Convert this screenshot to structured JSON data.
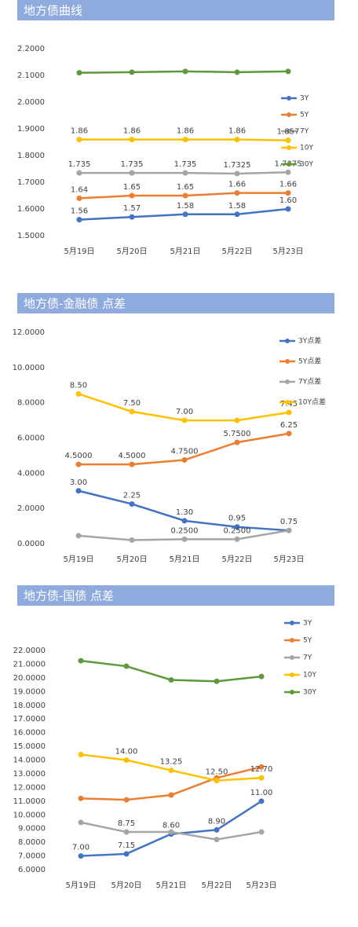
{
  "chart_data": [
    {
      "type": "line",
      "title": "地方债曲线",
      "categories": [
        "5月19日",
        "5月20日",
        "5月21日",
        "5月22日",
        "5月23日"
      ],
      "ylim": [
        1.5,
        2.2
      ],
      "yticks": [
        {
          "value": 1.5,
          "label": "1.5000"
        },
        {
          "value": 1.6,
          "label": "1.6000"
        },
        {
          "value": 1.7,
          "label": "1.7000"
        },
        {
          "value": 1.8,
          "label": "1.8000"
        },
        {
          "value": 1.9,
          "label": "1.9000"
        },
        {
          "value": 2.0,
          "label": "2.0000"
        },
        {
          "value": 2.1,
          "label": "2.1000"
        },
        {
          "value": 2.2,
          "label": "2.2000"
        }
      ],
      "grid": false,
      "legend": "right",
      "series": [
        {
          "name": "3Y",
          "color": "#4472c4",
          "values": [
            1.56,
            1.57,
            1.58,
            1.58,
            1.6
          ],
          "value_labels": [
            "1.56",
            "1.57",
            "1.58",
            "1.58",
            "1.60"
          ]
        },
        {
          "name": "5Y",
          "color": "#ed7d31",
          "values": [
            1.64,
            1.65,
            1.65,
            1.66,
            1.66
          ],
          "value_labels": [
            "1.64",
            "1.65",
            "1.65",
            "1.66",
            "1.66"
          ]
        },
        {
          "name": "7Y",
          "color": "#a5a5a5",
          "values": [
            1.735,
            1.735,
            1.735,
            1.7325,
            1.7375
          ],
          "value_labels": [
            "1.735",
            "1.735",
            "1.735",
            "1.7325",
            "1.7375"
          ]
        },
        {
          "name": "10Y",
          "color": "#ffc000",
          "values": [
            1.86,
            1.86,
            1.86,
            1.86,
            1.857
          ],
          "value_labels": [
            "1.86",
            "1.86",
            "1.86",
            "1.86",
            "1.857"
          ]
        },
        {
          "name": "30Y",
          "color": "#5e9a3c",
          "values": [
            2.11,
            2.112,
            2.115,
            2.112,
            2.115
          ]
        }
      ]
    },
    {
      "type": "line",
      "title": "地方债-金融债 点差",
      "categories": [
        "5月19日",
        "5月20日",
        "5月21日",
        "5月22日",
        "5月23日"
      ],
      "ylim": [
        0,
        12
      ],
      "yticks": [
        {
          "value": 0,
          "label": "0.0000"
        },
        {
          "value": 2,
          "label": "2.0000"
        },
        {
          "value": 4,
          "label": "4.0000"
        },
        {
          "value": 6,
          "label": "6.0000"
        },
        {
          "value": 8,
          "label": "8.0000"
        },
        {
          "value": 10,
          "label": "10.0000"
        },
        {
          "value": 12,
          "label": "12.0000"
        }
      ],
      "grid": false,
      "legend": "right",
      "series": [
        {
          "name": "3Y点差",
          "color": "#4472c4",
          "values": [
            3.0,
            2.25,
            1.3,
            0.95,
            0.75
          ],
          "value_labels": [
            "3.00",
            "2.25",
            "1.30",
            "0.95",
            "0.75"
          ]
        },
        {
          "name": "5Y点差",
          "color": "#ed7d31",
          "values": [
            4.5,
            4.5,
            4.75,
            5.75,
            6.25
          ],
          "value_labels": [
            "4.5000",
            "4.5000",
            "4.7500",
            "5.7500",
            "6.25"
          ]
        },
        {
          "name": "7Y点差",
          "color": "#a5a5a5",
          "values": [
            0.45,
            0.2,
            0.25,
            0.25,
            0.75
          ],
          "value_labels": [
            null,
            null,
            "0.2500",
            "0.2500",
            null
          ]
        },
        {
          "name": "10Y点差",
          "color": "#ffc000",
          "values": [
            8.5,
            7.5,
            7.0,
            7.0,
            7.45
          ],
          "value_labels": [
            "8.50",
            "7.50",
            "7.00",
            null,
            "7.45"
          ]
        }
      ]
    },
    {
      "type": "line",
      "title": "地方债-国债 点差",
      "categories": [
        "5月19日",
        "5月20日",
        "5月21日",
        "5月22日",
        "5月23日"
      ],
      "ylim": [
        6,
        22
      ],
      "yticks": [
        {
          "value": 6,
          "label": "6.0000"
        },
        {
          "value": 7,
          "label": "7.0000"
        },
        {
          "value": 8,
          "label": "8.0000"
        },
        {
          "value": 9,
          "label": "9.0000"
        },
        {
          "value": 10,
          "label": "10.0000"
        },
        {
          "value": 11,
          "label": "11.0000"
        },
        {
          "value": 12,
          "label": "12.0000"
        },
        {
          "value": 13,
          "label": "13.0000"
        },
        {
          "value": 14,
          "label": "14.0000"
        },
        {
          "value": 15,
          "label": "15.0000"
        },
        {
          "value": 16,
          "label": "16.0000"
        },
        {
          "value": 17,
          "label": "17.0000"
        },
        {
          "value": 18,
          "label": "18.0000"
        },
        {
          "value": 19,
          "label": "19.0000"
        },
        {
          "value": 20,
          "label": "20.0000"
        },
        {
          "value": 21,
          "label": "21.0000"
        },
        {
          "value": 22,
          "label": "22.0000"
        }
      ],
      "grid": false,
      "legend": "top-right",
      "series": [
        {
          "name": "3Y",
          "color": "#4472c4",
          "values": [
            7.0,
            7.15,
            8.6,
            8.9,
            11.0
          ],
          "value_labels": [
            "7.00",
            "7.15",
            "8.60",
            "8.90",
            "11.00"
          ]
        },
        {
          "name": "5Y",
          "color": "#ed7d31",
          "values": [
            11.2,
            11.1,
            11.45,
            12.7,
            13.5
          ]
        },
        {
          "name": "7Y",
          "color": "#a5a5a5",
          "values": [
            9.45,
            8.75,
            8.75,
            8.2,
            8.75
          ],
          "value_labels": [
            null,
            "8.75",
            null,
            null,
            null
          ]
        },
        {
          "name": "10Y",
          "color": "#ffc000",
          "values": [
            14.4,
            14.0,
            13.25,
            12.5,
            12.7
          ],
          "value_labels": [
            null,
            "14.00",
            "13.25",
            "12.50",
            "12.70"
          ]
        },
        {
          "name": "30Y",
          "color": "#5e9a3c",
          "values": [
            21.25,
            20.85,
            19.85,
            19.75,
            20.1
          ]
        }
      ]
    }
  ]
}
